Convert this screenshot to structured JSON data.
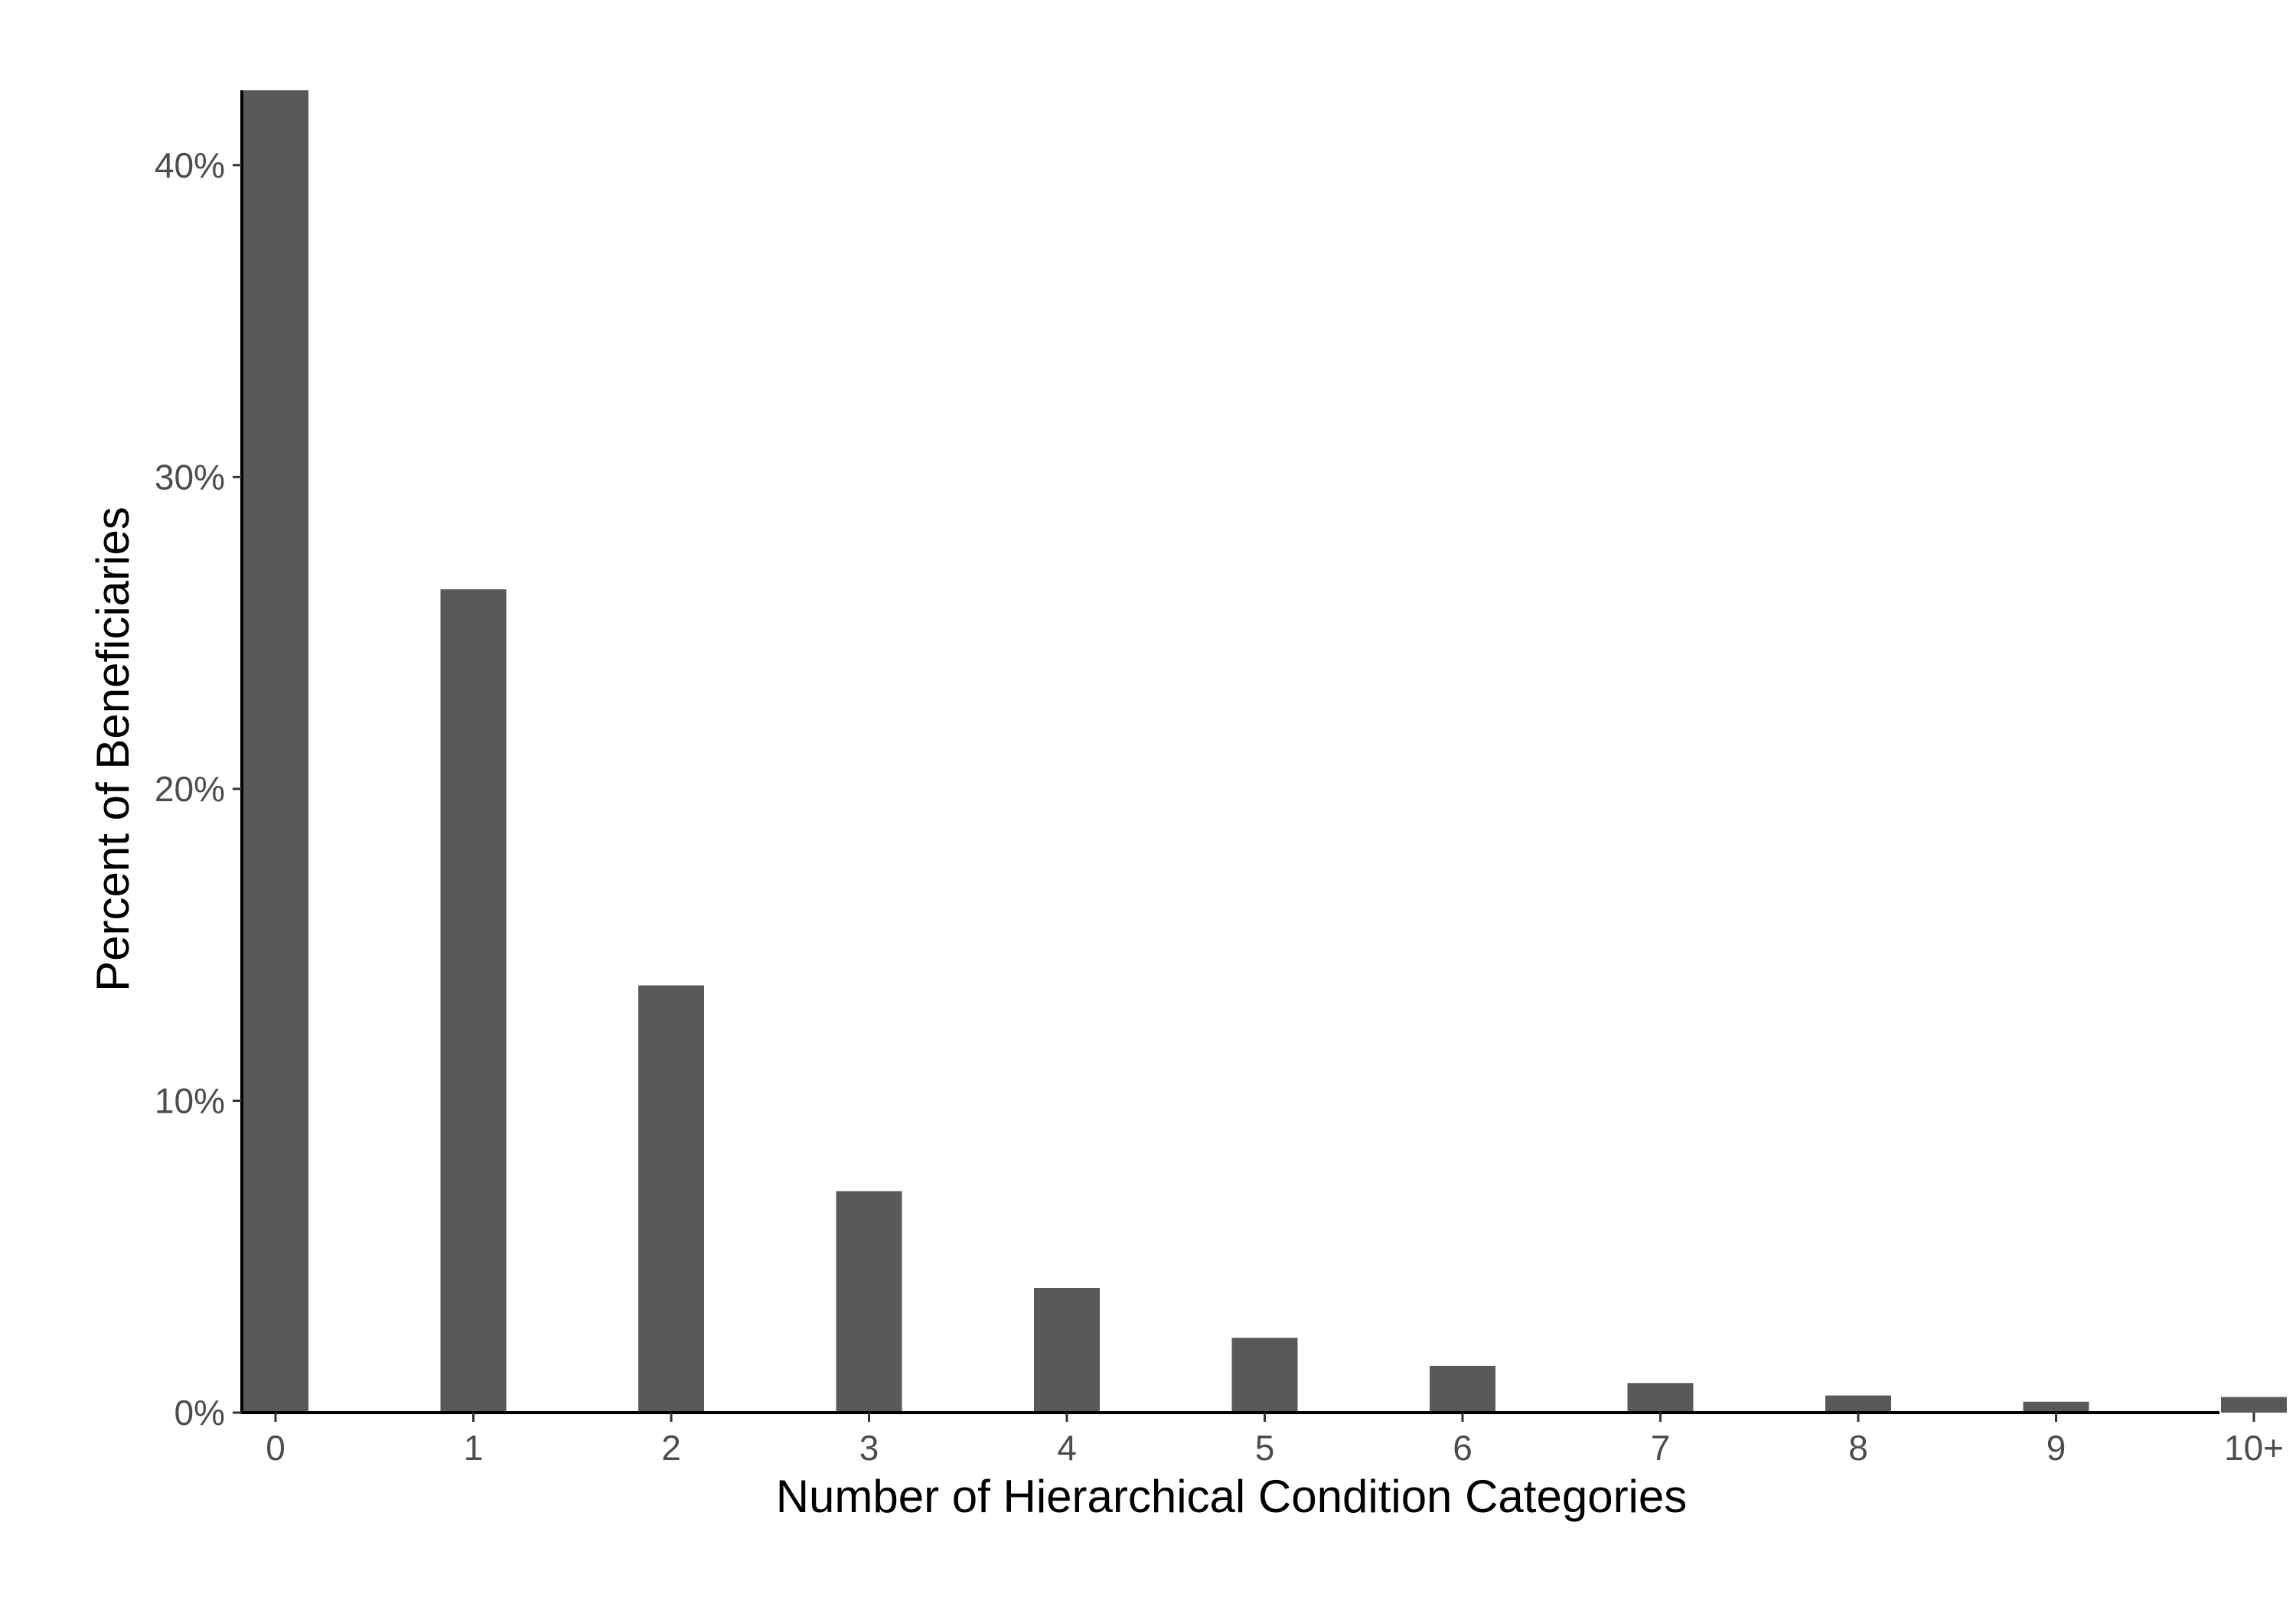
{
  "chart_data": {
    "type": "bar",
    "title": "",
    "xlabel": "Number of Hierarchical Condition Categories",
    "ylabel": "Percent of Beneficiaries",
    "categories": [
      "0",
      "1",
      "2",
      "3",
      "4",
      "5",
      "6",
      "7",
      "8",
      "9",
      "10+"
    ],
    "x_positions": [
      0,
      1,
      2,
      3,
      4,
      5,
      6,
      7,
      8,
      9,
      10
    ],
    "values": [
      42.4,
      26.4,
      13.7,
      7.1,
      4.0,
      2.4,
      1.5,
      0.95,
      0.55,
      0.35,
      0.5
    ],
    "ylim": [
      0,
      42.4
    ],
    "yticks": [
      0,
      10,
      20,
      30,
      40
    ],
    "ytick_labels": [
      "0%",
      "10%",
      "20%",
      "30%",
      "40%"
    ],
    "grid": false,
    "legend": "none",
    "colors": {
      "bar": "#595959",
      "axis": "#000000",
      "tick_text": "#4d4d4d",
      "background": "#ffffff"
    }
  }
}
